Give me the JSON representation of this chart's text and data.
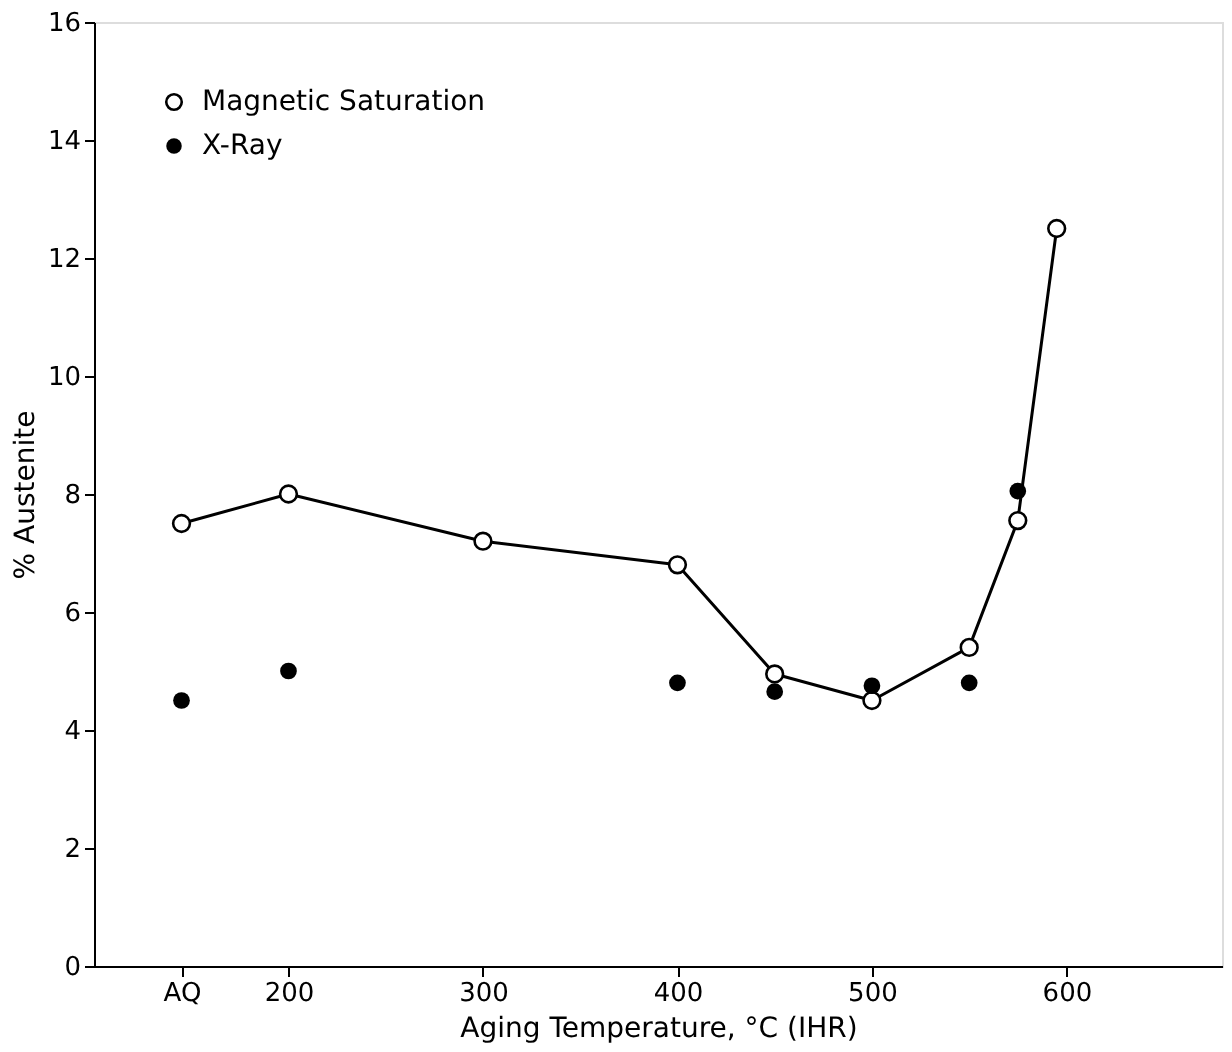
{
  "chart_data": {
    "type": "line",
    "xlabel": "Aging Temperature, °C (IHR)",
    "ylabel": "% Austenite",
    "xlim": [
      100,
      680
    ],
    "xticks": [
      {
        "value": 145,
        "label": "AQ"
      },
      200,
      300,
      400,
      500,
      600
    ],
    "ylim": [
      0,
      16
    ],
    "yticks": [
      0,
      2,
      4,
      6,
      8,
      10,
      12,
      14,
      16
    ],
    "grid": false,
    "legend": "top left",
    "marker": "circle",
    "line_style": "solid",
    "series": [
      {
        "name": "Magnetic Saturation",
        "color": "#000000",
        "x": [
          145,
          200,
          300,
          400,
          450,
          500,
          550,
          575,
          595
        ],
        "values": [
          7.5,
          8.0,
          7.2,
          6.8,
          4.95,
          4.5,
          5.4,
          7.55,
          12.5
        ]
      },
      {
        "name": "X-Ray",
        "type": "scatter",
        "color": "#000000",
        "x": [
          145,
          200,
          400,
          450,
          500,
          550,
          575
        ],
        "values": [
          4.5,
          5.0,
          4.8,
          4.65,
          4.75,
          4.8,
          8.05
        ]
      }
    ]
  }
}
